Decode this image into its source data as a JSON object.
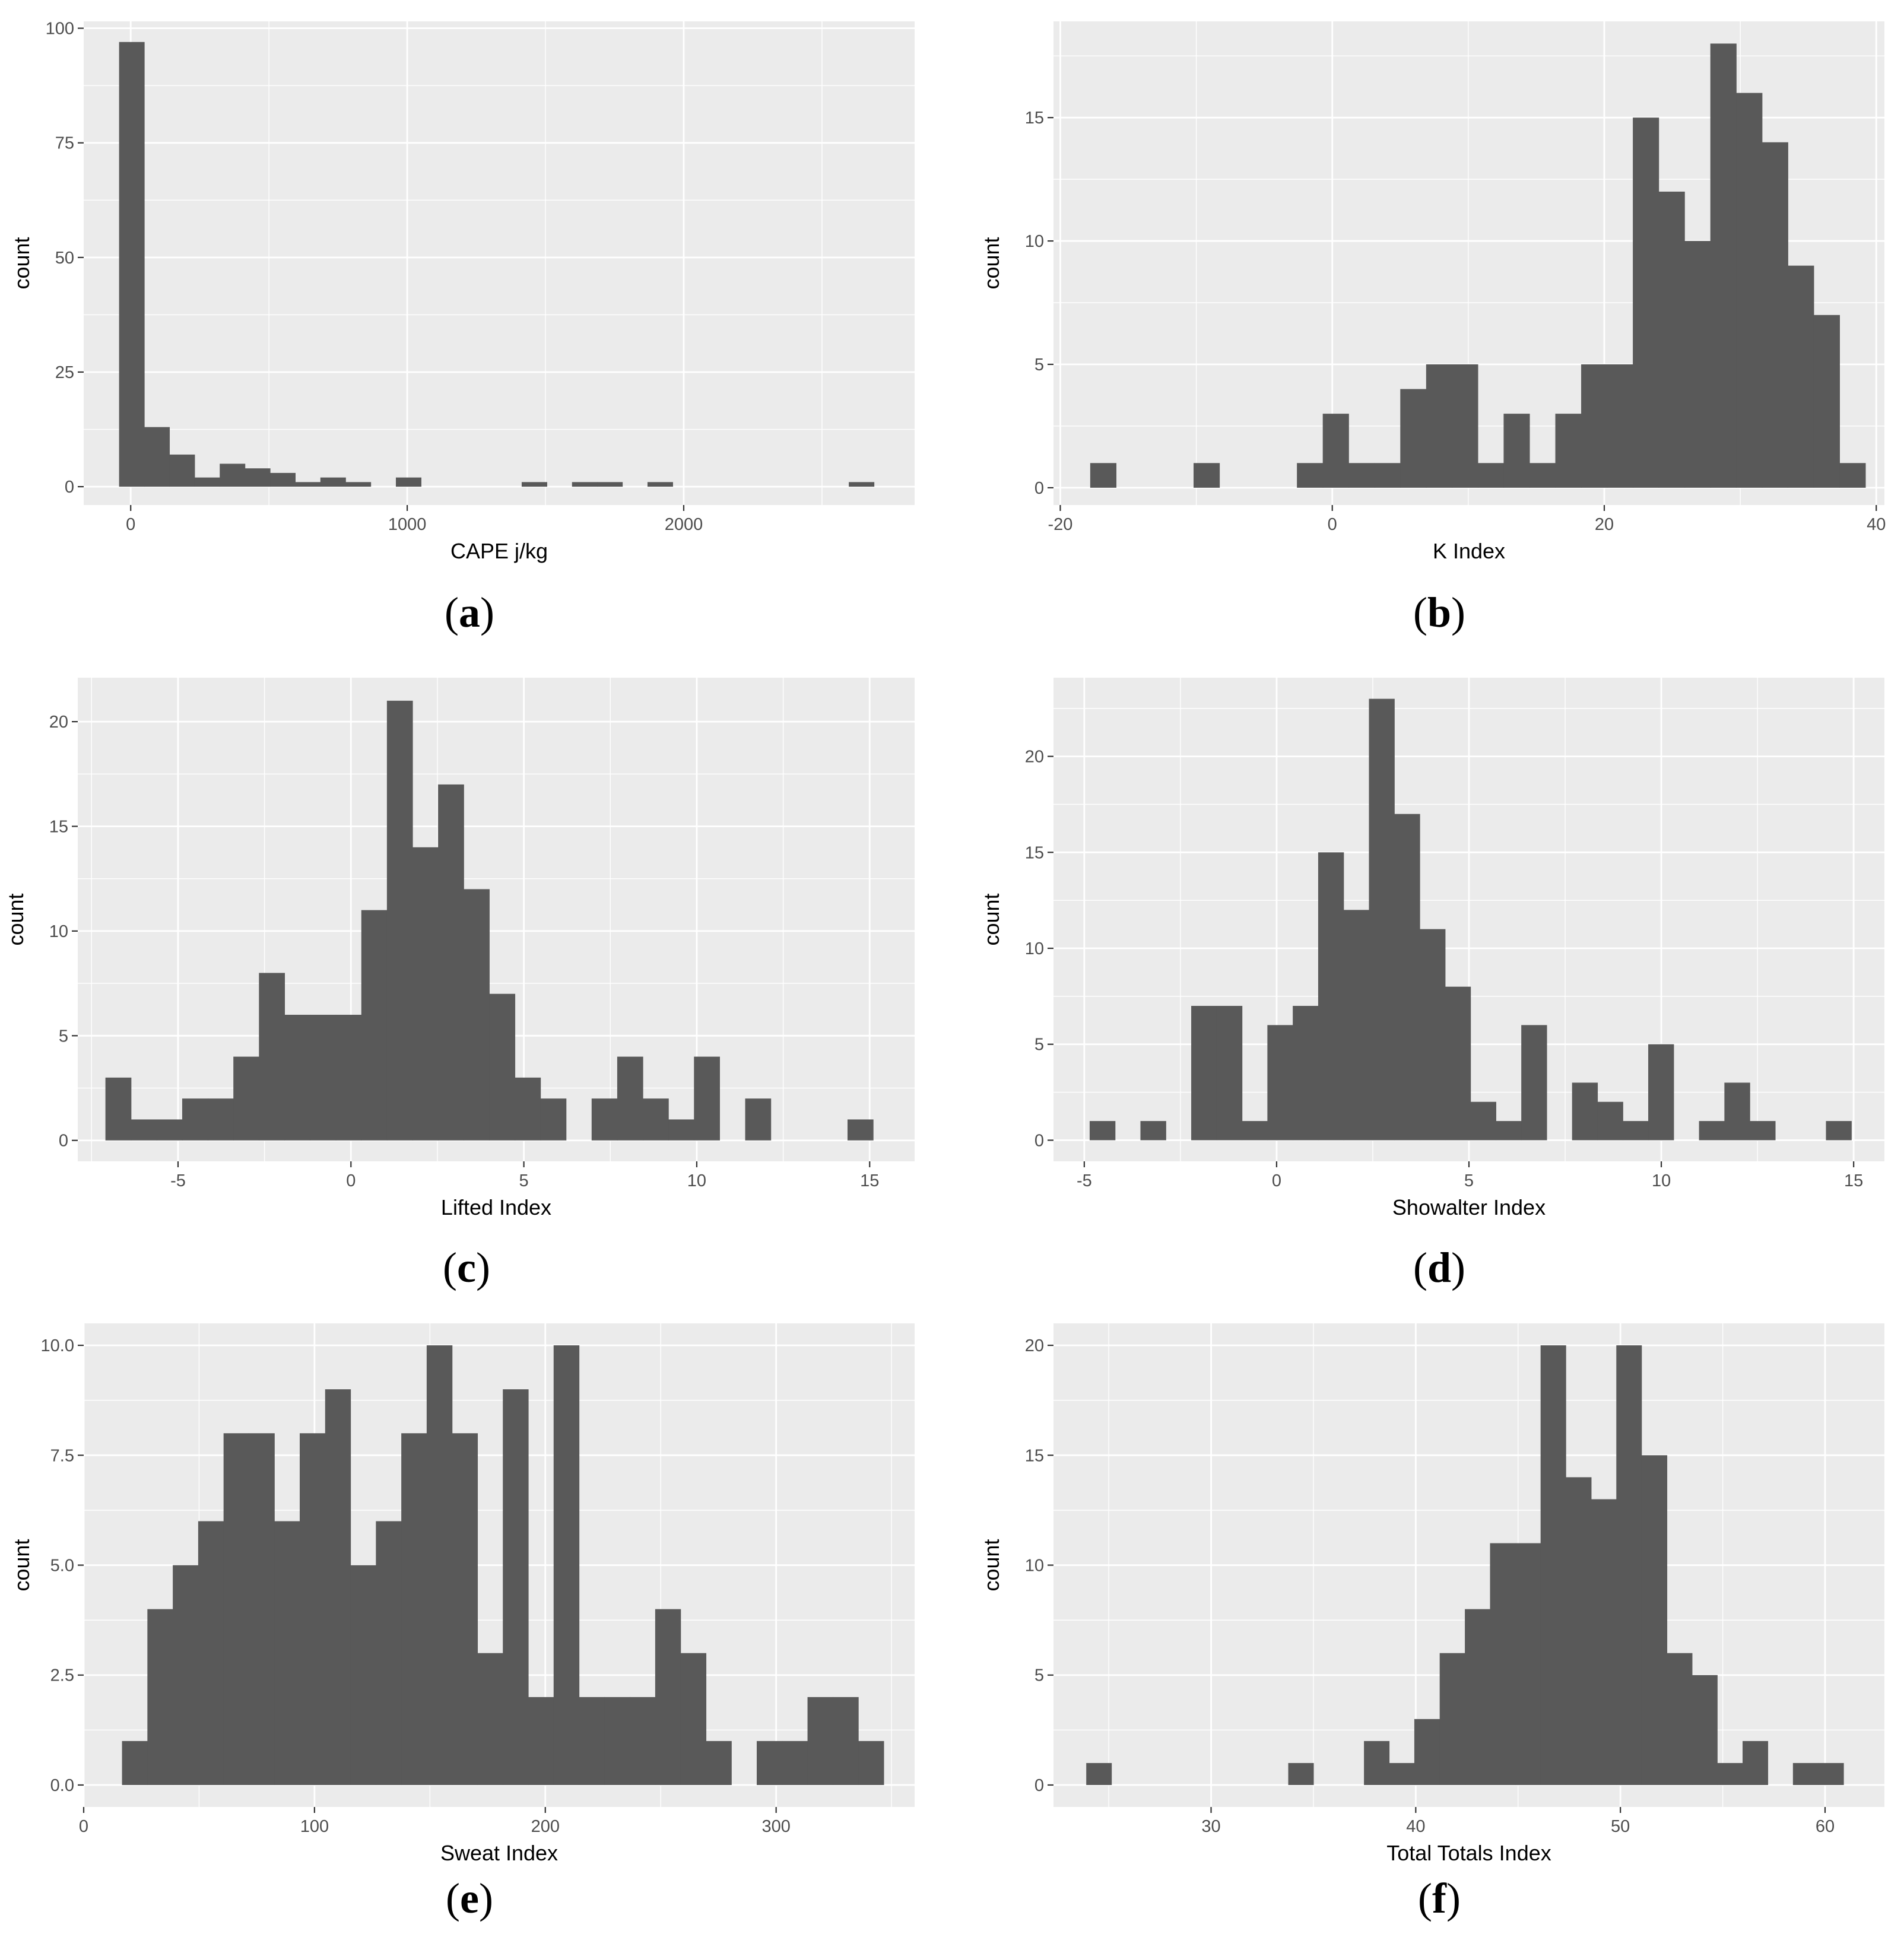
{
  "chart_data": [
    {
      "type": "bar",
      "panel": "(a)",
      "caption_letter": "a",
      "xlabel": "CAPE j/kg",
      "ylabel": "count",
      "x_ticks": [
        0,
        1000,
        2000
      ],
      "y_ticks": [
        0,
        25,
        50,
        75,
        100
      ],
      "x_tick_labels": [
        "0",
        "1000",
        "2000"
      ],
      "y_tick_labels": [
        "0",
        "25",
        "50",
        "75",
        "100"
      ],
      "xlim": [
        -170,
        2835
      ],
      "ylim": [
        -4,
        101.5
      ],
      "bin_edges": [
        -42,
        49,
        140,
        231,
        322,
        413,
        504,
        595,
        686,
        777,
        868,
        959,
        1050,
        1141,
        1232,
        1323,
        1414,
        1505,
        1596,
        1687,
        1778,
        1869,
        1960,
        2051,
        2142,
        2233,
        2324,
        2415,
        2506,
        2597,
        2688
      ],
      "counts": [
        97,
        13,
        7,
        2,
        5,
        4,
        3,
        1,
        2,
        1,
        0,
        2,
        0,
        0,
        0,
        0,
        1,
        0,
        1,
        1,
        0,
        1,
        0,
        0,
        0,
        0,
        0,
        0,
        0,
        1
      ]
    },
    {
      "type": "bar",
      "panel": "(b)",
      "caption_letter": "b",
      "xlabel": "K Index",
      "ylabel": "count",
      "x_ticks": [
        -20,
        0,
        20,
        40
      ],
      "y_ticks": [
        0,
        5,
        10,
        15
      ],
      "x_tick_labels": [
        "-20",
        "0",
        "20",
        "40"
      ],
      "y_tick_labels": [
        "0",
        "5",
        "10",
        "15"
      ],
      "xlim": [
        -20.5,
        40.6
      ],
      "ylim": [
        -0.7,
        18.9
      ],
      "bin_edges": [
        -17.8,
        -15.9,
        -14,
        -12.1,
        -10.2,
        -8.3,
        -6.4,
        -4.5,
        -2.6,
        -0.7,
        1.2,
        3.1,
        5.0,
        6.9,
        8.8,
        10.7,
        12.6,
        14.5,
        16.4,
        18.3,
        20.2,
        22.1,
        24.0,
        25.9,
        27.8,
        29.7,
        31.6,
        33.5,
        35.4,
        37.3,
        39.2
      ],
      "counts": [
        1,
        0,
        0,
        0,
        1,
        0,
        0,
        0,
        1,
        3,
        1,
        1,
        4,
        5,
        5,
        1,
        3,
        1,
        3,
        5,
        5,
        15,
        12,
        10,
        18,
        16,
        14,
        9,
        7,
        1
      ]
    },
    {
      "type": "bar",
      "panel": "(c)",
      "caption_letter": "c",
      "xlabel": "Lifted Index",
      "ylabel": "count",
      "x_ticks": [
        -5,
        0,
        5,
        10,
        15
      ],
      "y_ticks": [
        0,
        5,
        10,
        15,
        20
      ],
      "x_tick_labels": [
        "-5",
        "0",
        "5",
        "10",
        "15"
      ],
      "y_tick_labels": [
        "0",
        "5",
        "10",
        "15",
        "20"
      ],
      "xlim": [
        -7.9,
        16.3
      ],
      "ylim": [
        -1,
        22.1
      ],
      "bin_edges": [
        -7.1,
        -6.36,
        -5.62,
        -4.88,
        -4.14,
        -3.4,
        -2.66,
        -1.92,
        -1.18,
        -0.44,
        0.3,
        1.04,
        1.78,
        2.52,
        3.26,
        4.0,
        4.74,
        5.48,
        6.22,
        6.96,
        7.7,
        8.44,
        9.18,
        9.92,
        10.66,
        11.4,
        12.14,
        12.88,
        13.62,
        14.36,
        15.1
      ],
      "counts": [
        3,
        1,
        1,
        2,
        2,
        4,
        8,
        6,
        6,
        6,
        11,
        21,
        14,
        17,
        12,
        7,
        3,
        2,
        0,
        2,
        4,
        2,
        1,
        4,
        0,
        2,
        0,
        0,
        0,
        1
      ]
    },
    {
      "type": "bar",
      "panel": "(d)",
      "caption_letter": "d",
      "xlabel": "Showalter Index",
      "ylabel": "count",
      "x_ticks": [
        -5,
        0,
        5,
        10,
        15
      ],
      "y_ticks": [
        0,
        5,
        10,
        15,
        20
      ],
      "x_tick_labels": [
        "-5",
        "0",
        "5",
        "10",
        "15"
      ],
      "y_tick_labels": [
        "0",
        "5",
        "10",
        "15",
        "20"
      ],
      "xlim": [
        -5.8,
        15.8
      ],
      "ylim": [
        -1.1,
        24.1
      ],
      "bin_edges": [
        -4.86,
        -4.2,
        -3.54,
        -2.88,
        -2.22,
        -1.56,
        -0.9,
        -0.24,
        0.42,
        1.08,
        1.74,
        2.4,
        3.06,
        3.72,
        4.38,
        5.04,
        5.7,
        6.36,
        7.02,
        7.68,
        8.34,
        9.0,
        9.66,
        10.32,
        10.98,
        11.64,
        12.3,
        12.96,
        13.62,
        14.28,
        14.94
      ],
      "counts": [
        1,
        0,
        1,
        0,
        7,
        7,
        1,
        6,
        7,
        15,
        12,
        23,
        17,
        11,
        8,
        2,
        1,
        6,
        0,
        3,
        2,
        1,
        5,
        0,
        1,
        3,
        1,
        0,
        0,
        1
      ]
    },
    {
      "type": "bar",
      "panel": "(e)",
      "caption_letter": "e",
      "xlabel": "Sweat Index",
      "ylabel": "count",
      "x_ticks": [
        0,
        100,
        200,
        300
      ],
      "y_ticks": [
        0,
        2.5,
        5,
        7.5,
        10
      ],
      "x_tick_labels": [
        "0",
        "100",
        "200",
        "300"
      ],
      "y_tick_labels": [
        "0.0",
        "2.5",
        "5.0",
        "7.5",
        "10.0"
      ],
      "xlim": [
        0,
        360
      ],
      "ylim": [
        -0.5,
        10.5
      ],
      "bin_edges": [
        16.6,
        27.6,
        38.6,
        49.6,
        60.6,
        71.6,
        82.6,
        93.6,
        104.6,
        115.6,
        126.6,
        137.6,
        148.6,
        159.6,
        170.6,
        181.6,
        192.6,
        203.6,
        214.6,
        225.6,
        236.6,
        247.6,
        258.6,
        269.6,
        280.6,
        291.6,
        302.6,
        313.6,
        324.6,
        335.6,
        346.6
      ],
      "counts": [
        1,
        4,
        5,
        6,
        8,
        8,
        6,
        8,
        9,
        5,
        6,
        8,
        10,
        8,
        3,
        9,
        2,
        10,
        2,
        2,
        2,
        4,
        3,
        1,
        0,
        1,
        1,
        2,
        2,
        1
      ]
    },
    {
      "type": "bar",
      "panel": "(f)",
      "caption_letter": "f",
      "xlabel": "Total Totals Index",
      "ylabel": "count",
      "x_ticks": [
        30,
        40,
        50,
        60
      ],
      "y_ticks": [
        0,
        5,
        10,
        15,
        20
      ],
      "x_tick_labels": [
        "30",
        "40",
        "50",
        "60"
      ],
      "y_tick_labels": [
        "0",
        "5",
        "10",
        "15",
        "20"
      ],
      "xlim": [
        22.3,
        62.9
      ],
      "ylim": [
        -1,
        21
      ],
      "bin_edges": [
        23.9,
        25.13,
        26.37,
        27.6,
        28.83,
        30.07,
        31.3,
        32.53,
        33.77,
        35.0,
        36.23,
        37.47,
        38.7,
        39.93,
        41.17,
        42.4,
        43.63,
        44.87,
        46.1,
        47.33,
        48.57,
        49.8,
        51.03,
        52.27,
        53.5,
        54.73,
        55.97,
        57.2,
        58.43,
        59.67,
        60.9
      ],
      "counts": [
        1,
        0,
        0,
        0,
        0,
        0,
        0,
        0,
        1,
        0,
        0,
        2,
        1,
        3,
        6,
        8,
        11,
        11,
        20,
        14,
        13,
        20,
        15,
        6,
        5,
        1,
        2,
        0,
        1,
        1
      ]
    }
  ]
}
